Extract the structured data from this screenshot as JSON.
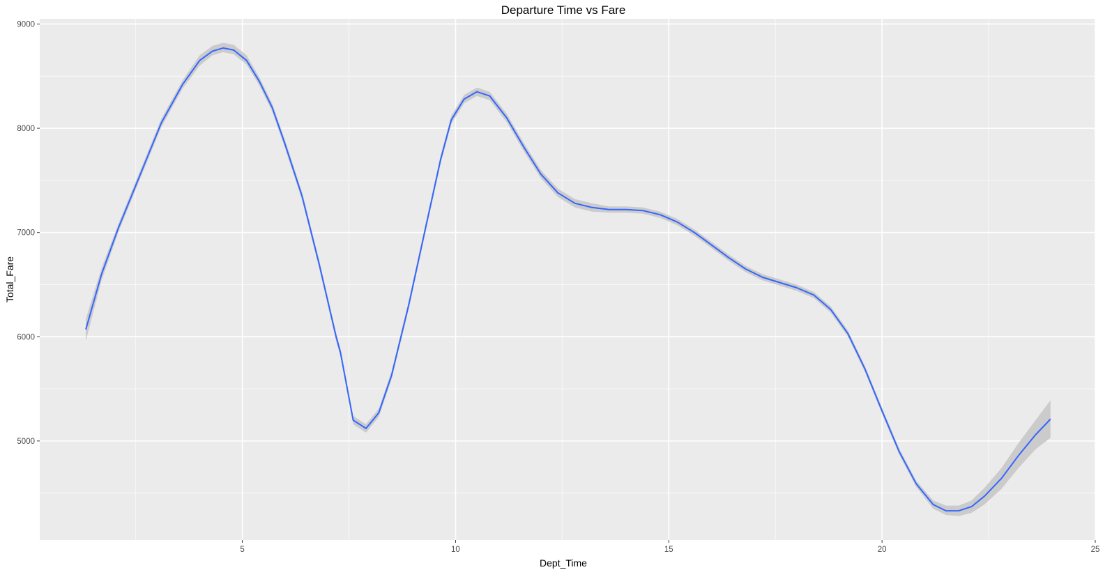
{
  "chart_data": {
    "type": "line",
    "title": "Departure Time vs Fare",
    "xlabel": "Dept_Time",
    "ylabel": "Total_Fare",
    "xlim": [
      0.25,
      25
    ],
    "ylim": [
      4050,
      9050
    ],
    "x_ticks": [
      5,
      10,
      15,
      20,
      25
    ],
    "x_tick_labels": [
      "5",
      "10",
      "15",
      "20",
      "25"
    ],
    "y_ticks": [
      5000,
      6000,
      7000,
      8000,
      9000
    ],
    "y_tick_labels": [
      "5000",
      "6000",
      "7000",
      "8000",
      "9000"
    ],
    "grid": true,
    "series": [
      {
        "x": [
          1.33,
          1.7,
          2.1,
          2.6,
          3.1,
          3.6,
          4.0,
          4.3,
          4.55,
          4.8,
          5.1,
          5.4,
          5.7,
          6.0,
          6.4,
          6.8,
          7.2,
          7.3,
          7.6,
          7.9,
          8.2,
          8.5,
          8.9,
          9.3,
          9.65,
          9.9,
          10.2,
          10.5,
          10.8,
          11.2,
          11.6,
          12.0,
          12.4,
          12.8,
          13.2,
          13.6,
          14.0,
          14.4,
          14.8,
          15.2,
          15.6,
          16.0,
          16.4,
          16.8,
          17.2,
          17.6,
          18.0,
          18.4,
          18.8,
          19.2,
          19.6,
          20.0,
          20.4,
          20.8,
          21.2,
          21.5,
          21.8,
          22.1,
          22.4,
          22.8,
          23.2,
          23.6,
          23.95
        ],
        "values": [
          6070,
          6600,
          7050,
          7550,
          8050,
          8420,
          8650,
          8740,
          8770,
          8750,
          8650,
          8450,
          8200,
          7850,
          7350,
          6700,
          6000,
          5850,
          5200,
          5120,
          5270,
          5630,
          6300,
          7050,
          7700,
          8080,
          8280,
          8350,
          8310,
          8100,
          7820,
          7560,
          7380,
          7280,
          7240,
          7220,
          7220,
          7210,
          7170,
          7100,
          7000,
          6880,
          6760,
          6650,
          6570,
          6520,
          6470,
          6400,
          6260,
          6030,
          5690,
          5290,
          4900,
          4590,
          4390,
          4330,
          4330,
          4370,
          4470,
          4640,
          4860,
          5060,
          5210
        ],
        "ci_lower": [
          5960,
          6540,
          7010,
          7510,
          8010,
          8380,
          8600,
          8700,
          8730,
          8710,
          8610,
          8410,
          8160,
          7810,
          7310,
          6660,
          5960,
          5810,
          5160,
          5080,
          5230,
          5590,
          6260,
          7010,
          7660,
          8040,
          8240,
          8310,
          8270,
          8060,
          7780,
          7520,
          7340,
          7240,
          7200,
          7190,
          7190,
          7180,
          7140,
          7070,
          6970,
          6850,
          6730,
          6620,
          6540,
          6490,
          6440,
          6370,
          6230,
          6000,
          5660,
          5260,
          4870,
          4560,
          4350,
          4290,
          4280,
          4310,
          4390,
          4540,
          4740,
          4920,
          5030
        ],
        "ci_upper": [
          6170,
          6660,
          7090,
          7590,
          8090,
          8460,
          8700,
          8790,
          8820,
          8800,
          8700,
          8490,
          8240,
          7890,
          7390,
          6740,
          6040,
          5890,
          5240,
          5160,
          5310,
          5670,
          6340,
          7090,
          7740,
          8120,
          8320,
          8390,
          8350,
          8140,
          7860,
          7600,
          7420,
          7320,
          7280,
          7250,
          7250,
          7240,
          7200,
          7130,
          7030,
          6910,
          6790,
          6680,
          6600,
          6550,
          6500,
          6430,
          6290,
          6060,
          5720,
          5320,
          4930,
          4620,
          4430,
          4380,
          4380,
          4430,
          4550,
          4740,
          4980,
          5200,
          5390
        ]
      }
    ],
    "colors": {
      "line": "#3366ff",
      "ribbon": "#c8c8c8",
      "panel": "#ebebeb",
      "grid_major": "#ffffff",
      "grid_minor": "#f7f7f7"
    }
  }
}
